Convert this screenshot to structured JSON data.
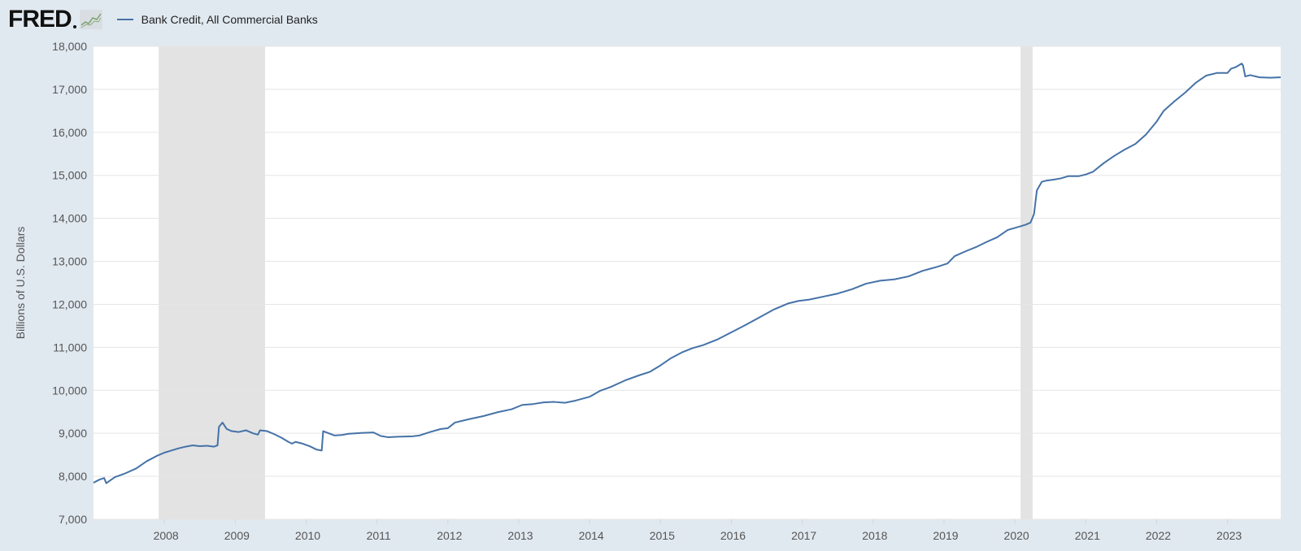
{
  "logo": {
    "text": "FRED",
    "icon": "fred-logo-graph-icon"
  },
  "colors": {
    "background": "#e1e9f0",
    "plot_background": "#ffffff",
    "grid": "#e5e5e5",
    "series": "#4572a7",
    "recession": "#e3e3e3",
    "axis_text": "#555555"
  },
  "chart_data": {
    "type": "line",
    "title": "",
    "legend_placement": "top-left",
    "ylabel": "Billions of U.S. Dollars",
    "xlabel": "",
    "ylim": [
      7000,
      18000
    ],
    "xlim": [
      2007.0,
      2023.75
    ],
    "grid": true,
    "y_ticks": [
      7000,
      8000,
      9000,
      10000,
      11000,
      12000,
      13000,
      14000,
      15000,
      16000,
      17000,
      18000
    ],
    "y_tick_labels": [
      "7,000",
      "8,000",
      "9,000",
      "10,000",
      "11,000",
      "12,000",
      "13,000",
      "14,000",
      "15,000",
      "16,000",
      "17,000",
      "18,000"
    ],
    "x_ticks": [
      2008,
      2009,
      2010,
      2011,
      2012,
      2013,
      2014,
      2015,
      2016,
      2017,
      2018,
      2019,
      2020,
      2021,
      2022,
      2023
    ],
    "x_tick_labels": [
      "2008",
      "2009",
      "2010",
      "2011",
      "2012",
      "2013",
      "2014",
      "2015",
      "2016",
      "2017",
      "2018",
      "2019",
      "2020",
      "2021",
      "2022",
      "2023"
    ],
    "recession_periods": [
      [
        2007.92,
        2009.42
      ],
      [
        2020.08,
        2020.25
      ]
    ],
    "series": [
      {
        "name": "Bank Credit, All Commercial Banks",
        "points": [
          [
            2007.0,
            7850
          ],
          [
            2007.08,
            7920
          ],
          [
            2007.15,
            7960
          ],
          [
            2007.18,
            7840
          ],
          [
            2007.3,
            7980
          ],
          [
            2007.45,
            8070
          ],
          [
            2007.6,
            8180
          ],
          [
            2007.75,
            8350
          ],
          [
            2007.9,
            8480
          ],
          [
            2008.0,
            8550
          ],
          [
            2008.1,
            8600
          ],
          [
            2008.2,
            8650
          ],
          [
            2008.3,
            8690
          ],
          [
            2008.4,
            8720
          ],
          [
            2008.5,
            8700
          ],
          [
            2008.6,
            8710
          ],
          [
            2008.7,
            8690
          ],
          [
            2008.75,
            8720
          ],
          [
            2008.77,
            9150
          ],
          [
            2008.82,
            9250
          ],
          [
            2008.88,
            9100
          ],
          [
            2008.95,
            9050
          ],
          [
            2009.05,
            9030
          ],
          [
            2009.15,
            9070
          ],
          [
            2009.25,
            9000
          ],
          [
            2009.32,
            8970
          ],
          [
            2009.35,
            9070
          ],
          [
            2009.45,
            9050
          ],
          [
            2009.55,
            8980
          ],
          [
            2009.65,
            8900
          ],
          [
            2009.75,
            8800
          ],
          [
            2009.8,
            8760
          ],
          [
            2009.85,
            8800
          ],
          [
            2009.95,
            8760
          ],
          [
            2010.05,
            8700
          ],
          [
            2010.15,
            8620
          ],
          [
            2010.22,
            8600
          ],
          [
            2010.24,
            9050
          ],
          [
            2010.32,
            9000
          ],
          [
            2010.4,
            8950
          ],
          [
            2010.5,
            8960
          ],
          [
            2010.6,
            8990
          ],
          [
            2010.8,
            9010
          ],
          [
            2010.95,
            9020
          ],
          [
            2011.05,
            8940
          ],
          [
            2011.15,
            8910
          ],
          [
            2011.3,
            8920
          ],
          [
            2011.5,
            8930
          ],
          [
            2011.6,
            8950
          ],
          [
            2011.75,
            9030
          ],
          [
            2011.9,
            9100
          ],
          [
            2012.0,
            9120
          ],
          [
            2012.1,
            9250
          ],
          [
            2012.3,
            9330
          ],
          [
            2012.5,
            9400
          ],
          [
            2012.7,
            9490
          ],
          [
            2012.9,
            9560
          ],
          [
            2013.05,
            9660
          ],
          [
            2013.2,
            9680
          ],
          [
            2013.35,
            9720
          ],
          [
            2013.5,
            9730
          ],
          [
            2013.65,
            9710
          ],
          [
            2013.8,
            9760
          ],
          [
            2014.0,
            9850
          ],
          [
            2014.15,
            9990
          ],
          [
            2014.3,
            10080
          ],
          [
            2014.5,
            10230
          ],
          [
            2014.7,
            10350
          ],
          [
            2014.85,
            10430
          ],
          [
            2015.0,
            10580
          ],
          [
            2015.15,
            10750
          ],
          [
            2015.3,
            10880
          ],
          [
            2015.45,
            10980
          ],
          [
            2015.6,
            11050
          ],
          [
            2015.8,
            11180
          ],
          [
            2016.0,
            11350
          ],
          [
            2016.2,
            11520
          ],
          [
            2016.4,
            11700
          ],
          [
            2016.6,
            11880
          ],
          [
            2016.8,
            12020
          ],
          [
            2016.95,
            12080
          ],
          [
            2017.1,
            12110
          ],
          [
            2017.3,
            12180
          ],
          [
            2017.5,
            12250
          ],
          [
            2017.7,
            12350
          ],
          [
            2017.9,
            12480
          ],
          [
            2018.1,
            12550
          ],
          [
            2018.3,
            12580
          ],
          [
            2018.5,
            12650
          ],
          [
            2018.7,
            12780
          ],
          [
            2018.9,
            12870
          ],
          [
            2019.05,
            12950
          ],
          [
            2019.15,
            13120
          ],
          [
            2019.3,
            13230
          ],
          [
            2019.45,
            13330
          ],
          [
            2019.6,
            13450
          ],
          [
            2019.75,
            13560
          ],
          [
            2019.9,
            13730
          ],
          [
            2020.05,
            13800
          ],
          [
            2020.15,
            13850
          ],
          [
            2020.22,
            13900
          ],
          [
            2020.27,
            14100
          ],
          [
            2020.31,
            14650
          ],
          [
            2020.38,
            14850
          ],
          [
            2020.45,
            14880
          ],
          [
            2020.55,
            14900
          ],
          [
            2020.65,
            14930
          ],
          [
            2020.75,
            14980
          ],
          [
            2020.9,
            14980
          ],
          [
            2021.0,
            15020
          ],
          [
            2021.1,
            15080
          ],
          [
            2021.25,
            15280
          ],
          [
            2021.4,
            15450
          ],
          [
            2021.55,
            15600
          ],
          [
            2021.7,
            15730
          ],
          [
            2021.85,
            15950
          ],
          [
            2022.0,
            16250
          ],
          [
            2022.1,
            16500
          ],
          [
            2022.25,
            16720
          ],
          [
            2022.4,
            16920
          ],
          [
            2022.55,
            17150
          ],
          [
            2022.7,
            17320
          ],
          [
            2022.85,
            17380
          ],
          [
            2023.0,
            17380
          ],
          [
            2023.05,
            17480
          ],
          [
            2023.12,
            17520
          ],
          [
            2023.2,
            17600
          ],
          [
            2023.22,
            17550
          ],
          [
            2023.25,
            17300
          ],
          [
            2023.32,
            17330
          ],
          [
            2023.45,
            17280
          ],
          [
            2023.6,
            17270
          ],
          [
            2023.75,
            17280
          ]
        ]
      }
    ]
  }
}
